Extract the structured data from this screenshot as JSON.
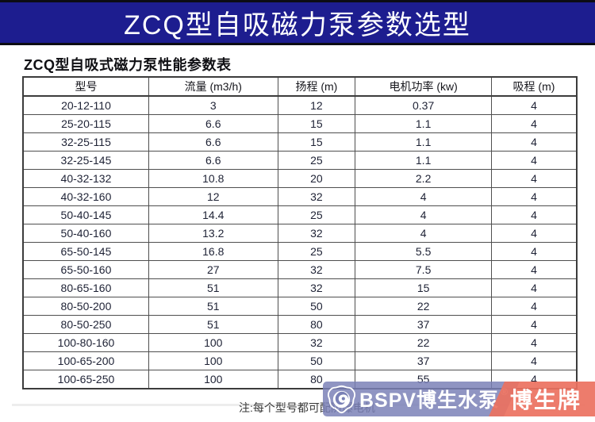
{
  "banner": {
    "title": "ZCQ型自吸磁力泵参数选型",
    "bg_color": "#1d1d8f",
    "text_color": "#ffffff"
  },
  "table": {
    "caption": "ZCQ型自吸式磁力泵性能参数表",
    "columns": [
      "型号",
      "流量 (m3/h)",
      "扬程 (m)",
      "电机功率 (kw)",
      "吸程 (m)"
    ],
    "rows": [
      [
        "20-12-110",
        "3",
        "12",
        "0.37",
        "4"
      ],
      [
        "25-20-115",
        "6.6",
        "15",
        "1.1",
        "4"
      ],
      [
        "32-25-115",
        "6.6",
        "15",
        "1.1",
        "4"
      ],
      [
        "32-25-145",
        "6.6",
        "25",
        "1.1",
        "4"
      ],
      [
        "40-32-132",
        "10.8",
        "20",
        "2.2",
        "4"
      ],
      [
        "40-32-160",
        "12",
        "32",
        "4",
        "4"
      ],
      [
        "50-40-145",
        "14.4",
        "25",
        "4",
        "4"
      ],
      [
        "50-40-160",
        "13.2",
        "32",
        "4",
        "4"
      ],
      [
        "65-50-145",
        "16.8",
        "25",
        "5.5",
        "4"
      ],
      [
        "65-50-160",
        "27",
        "32",
        "7.5",
        "4"
      ],
      [
        "80-65-160",
        "51",
        "32",
        "15",
        "4"
      ],
      [
        "80-50-200",
        "51",
        "50",
        "22",
        "4"
      ],
      [
        "80-50-250",
        "51",
        "80",
        "37",
        "4"
      ],
      [
        "100-80-160",
        "100",
        "32",
        "22",
        "4"
      ],
      [
        "100-65-200",
        "100",
        "50",
        "37",
        "4"
      ],
      [
        "100-65-250",
        "100",
        "80",
        "55",
        "4"
      ]
    ]
  },
  "note": "注:每个型号都可配防爆电机",
  "watermark": {
    "brand_left": "BSPV博生水泵",
    "registered_mark": "®",
    "brand_right": "博生牌",
    "left_bg_color": "#7980b6",
    "right_bg_color": "#ec7160",
    "logo_icon": "pump-swirl-badge-icon"
  }
}
